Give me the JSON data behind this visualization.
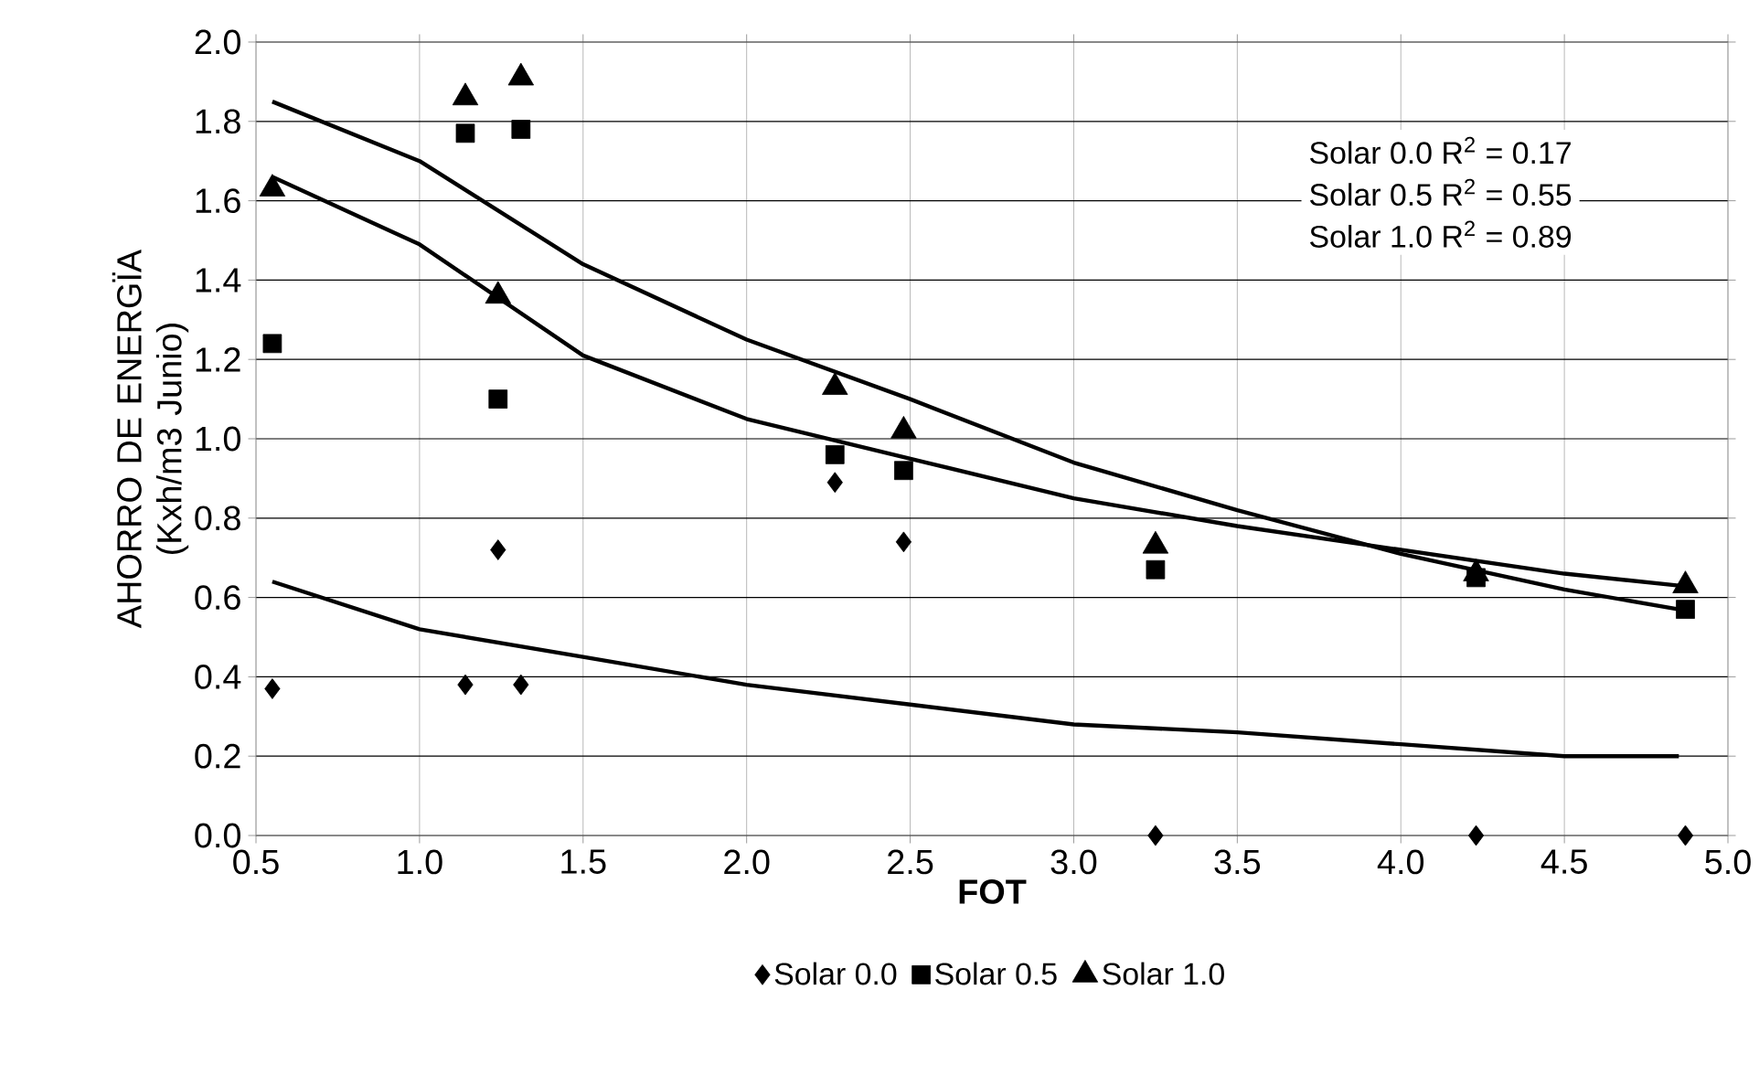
{
  "chart_data": {
    "type": "scatter",
    "xlabel": "FOT",
    "ylabel": "AHORRO DE ENERGÏA (Kxh/m3 Junio)",
    "x": [
      0.55,
      1.14,
      1.24,
      1.31,
      2.27,
      2.48,
      3.25,
      4.23,
      4.87
    ],
    "series": [
      {
        "name": "Solar 0.0",
        "color": "#000000",
        "marker": "diamond",
        "values": [
          0.37,
          0.38,
          0.72,
          0.38,
          0.89,
          0.74,
          0.0,
          0.0,
          0.0
        ]
      },
      {
        "name": "Solar 0.5",
        "color": "#000000",
        "marker": "square",
        "values": [
          1.24,
          1.77,
          1.1,
          1.78,
          0.96,
          0.92,
          0.67,
          0.65,
          0.57
        ]
      },
      {
        "name": "Solar 1.0",
        "color": "#000000",
        "marker": "triangle",
        "values": [
          1.63,
          1.86,
          1.36,
          1.91,
          1.13,
          1.02,
          0.73,
          0.66,
          0.63
        ]
      },
      {
        "type": "line",
        "color": "#000000",
        "marker": "none",
        "x": [
          0.55,
          1.0,
          1.5,
          2.0,
          2.5,
          3.0,
          3.5,
          4.0,
          4.5,
          4.85
        ],
        "values": [
          0.64,
          0.52,
          0.45,
          0.38,
          0.33,
          0.28,
          0.26,
          0.23,
          0.2,
          0.2
        ]
      },
      {
        "type": "line",
        "color": "#000000",
        "marker": "none",
        "x": [
          0.55,
          1.0,
          1.5,
          2.0,
          2.5,
          3.0,
          3.5,
          4.0,
          4.5,
          4.85
        ],
        "values": [
          1.66,
          1.49,
          1.21,
          1.05,
          0.95,
          0.85,
          0.78,
          0.72,
          0.66,
          0.63
        ]
      },
      {
        "type": "line",
        "color": "#000000",
        "marker": "none",
        "x": [
          0.55,
          1.0,
          1.5,
          2.0,
          2.5,
          3.0,
          3.5,
          4.0,
          4.5,
          4.85
        ],
        "values": [
          1.85,
          1.7,
          1.44,
          1.25,
          1.1,
          0.94,
          0.82,
          0.71,
          0.62,
          0.57
        ]
      }
    ],
    "xlim": [
      0.5,
      5.0
    ],
    "xticks": [
      {
        "value": 0.5,
        "label": "0.5"
      },
      {
        "value": 1,
        "label": "1.0"
      },
      {
        "value": 1.5,
        "label": "1.5"
      },
      {
        "value": 2,
        "label": "2.0"
      },
      {
        "value": 2.5,
        "label": "2.5"
      },
      {
        "value": 3,
        "label": "3.0"
      },
      {
        "value": 3.5,
        "label": "3.5"
      },
      {
        "value": 4,
        "label": "4.0"
      },
      {
        "value": 4.5,
        "label": "4.5"
      },
      {
        "value": 5,
        "label": "5.0"
      }
    ],
    "ylim": [
      0,
      2.0
    ],
    "yticks": [
      {
        "value": 0,
        "label": "0.0"
      },
      {
        "value": 0.2,
        "label": "0.2"
      },
      {
        "value": 0.4,
        "label": "0.4"
      },
      {
        "value": 0.6,
        "label": "0.6"
      },
      {
        "value": 0.8,
        "label": "0.8"
      },
      {
        "value": 1,
        "label": "1.0"
      },
      {
        "value": 1.2,
        "label": "1.2"
      },
      {
        "value": 1.4,
        "label": "1.4"
      },
      {
        "value": 1.6,
        "label": "1.6"
      },
      {
        "value": 1.8,
        "label": "1.8"
      },
      {
        "value": 2,
        "label": "2.0"
      }
    ],
    "grid": true,
    "legend": "bottom",
    "annotations": [
      "Solar 0.0  R$^{2}$ = 0.17",
      "Solar 0.5  R$^{2}$ = 0.55",
      "Solar 1.0  R$^{2}$ = 0.89"
    ]
  }
}
